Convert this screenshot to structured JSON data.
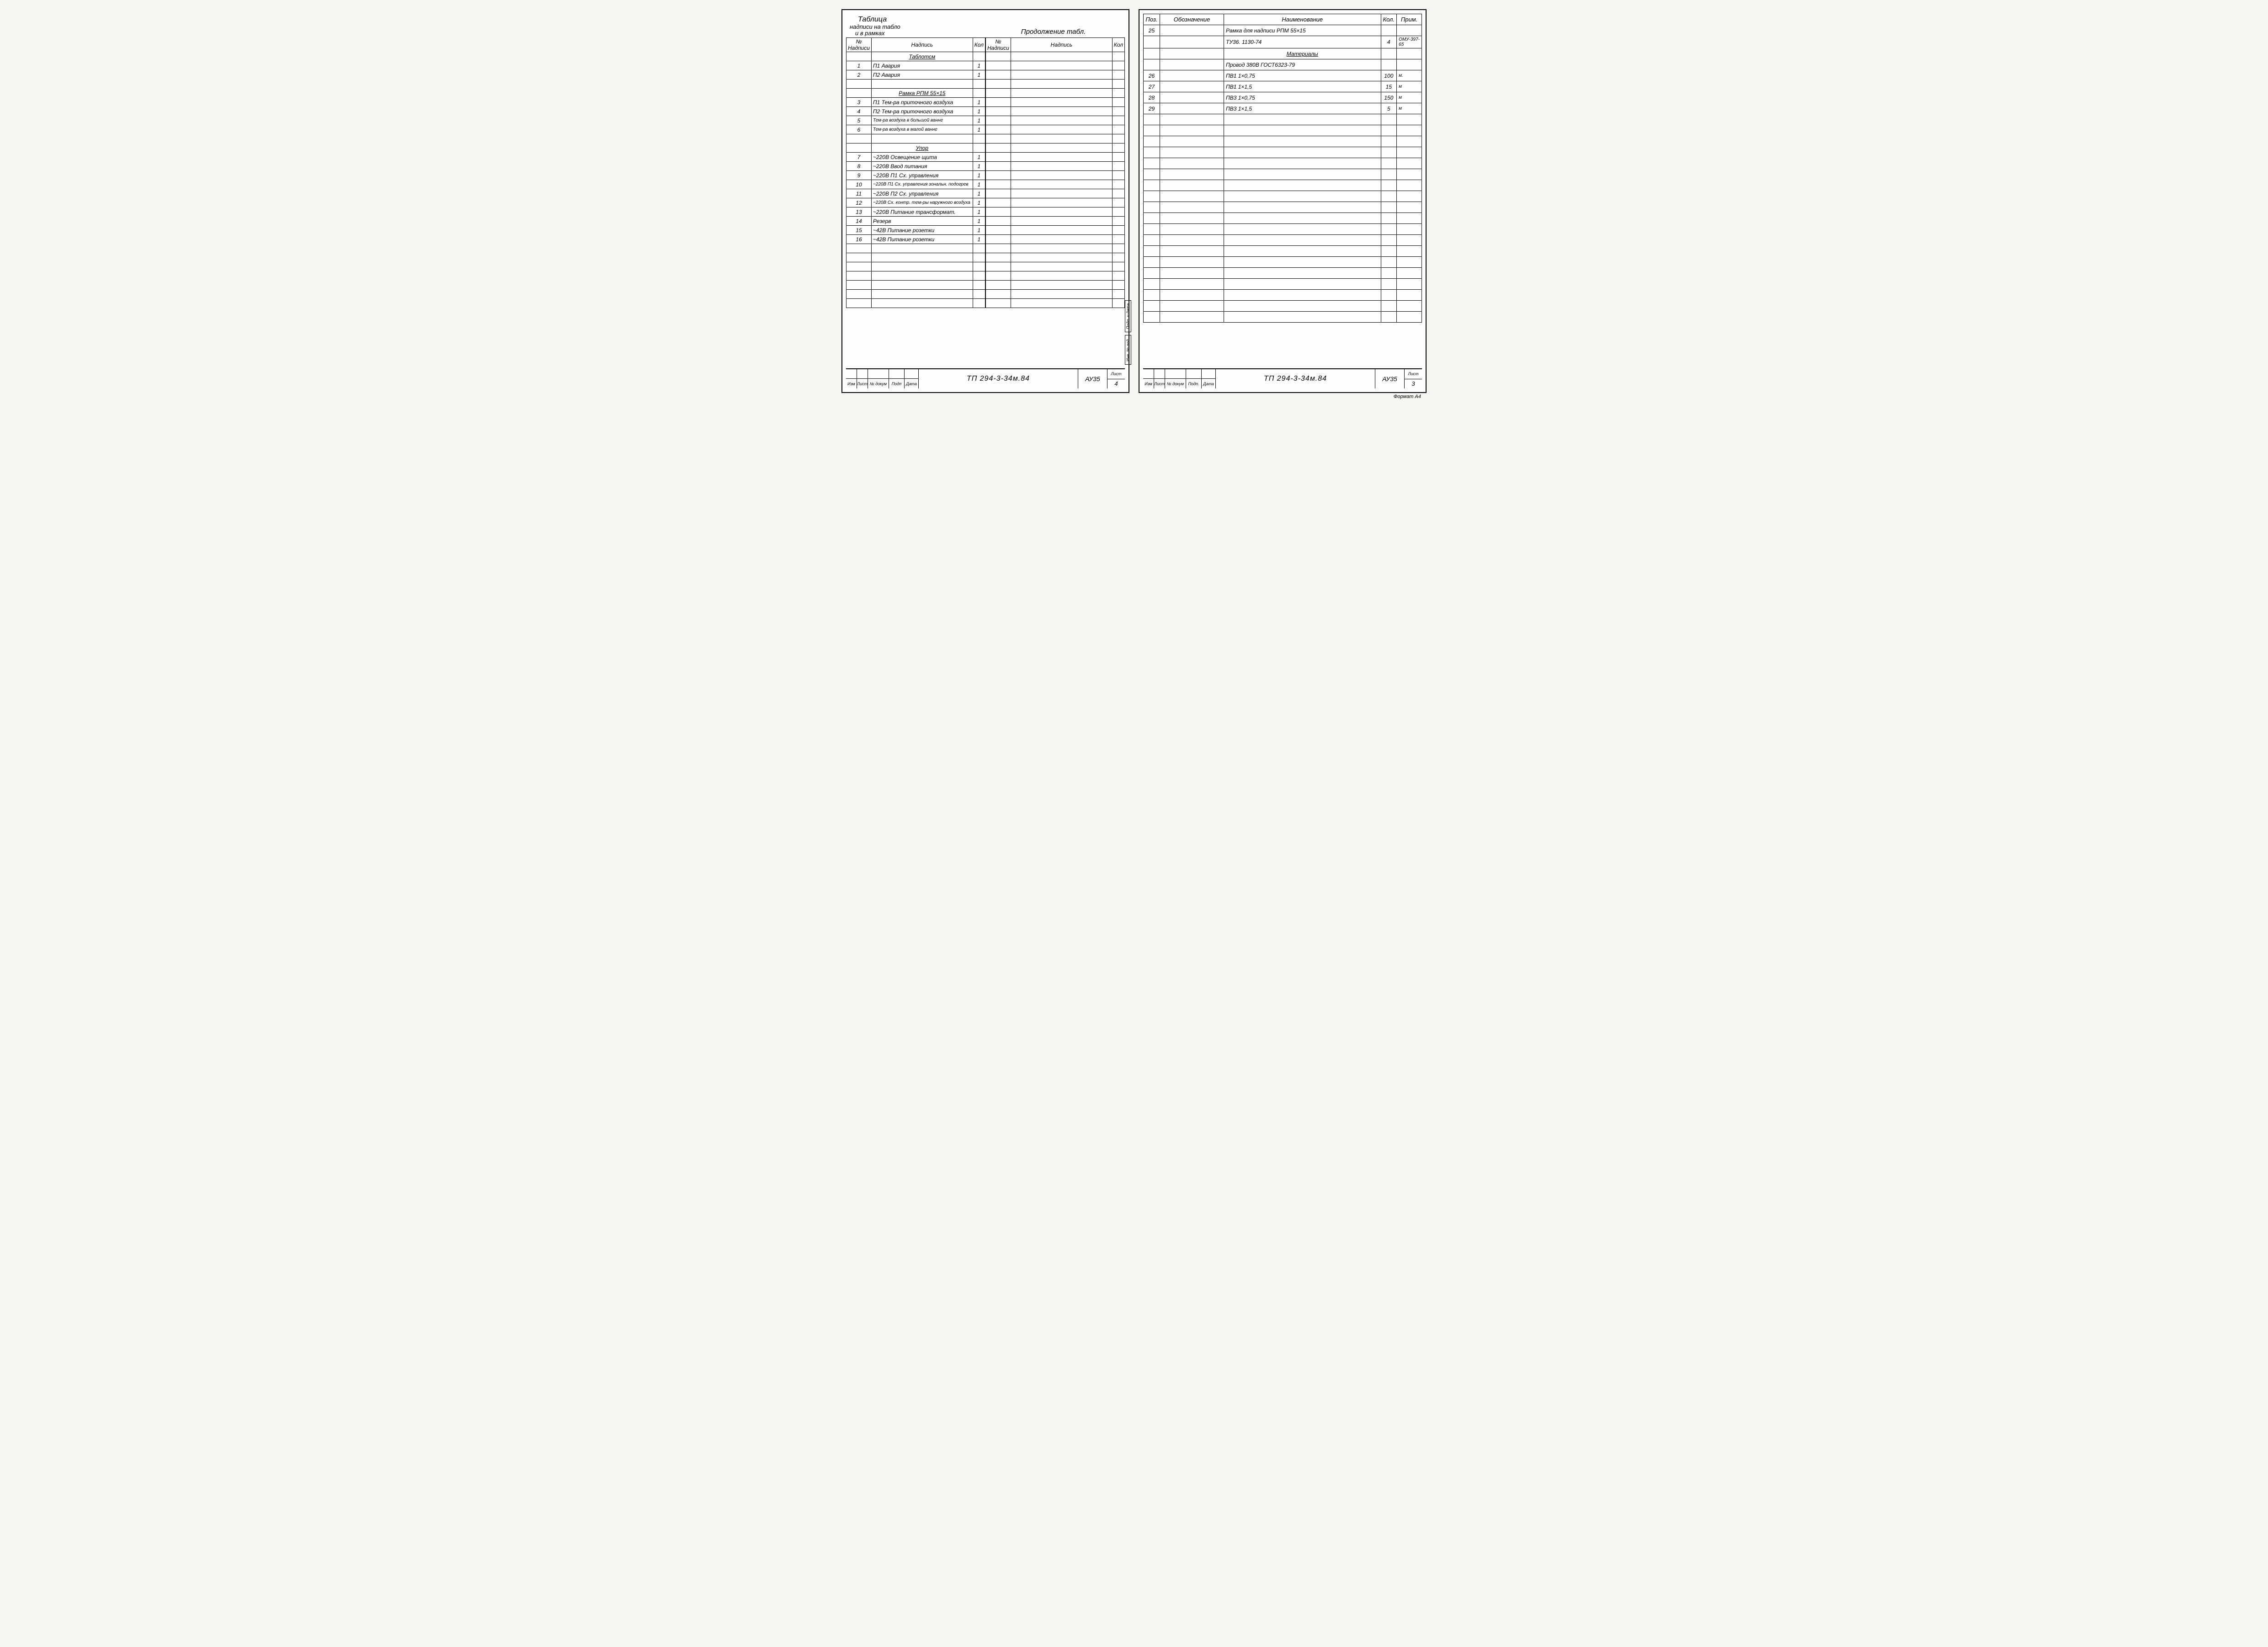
{
  "left": {
    "title_line1": "Таблица",
    "title_line2": "надписи на табло",
    "title_line3": "и в рамках",
    "continuation": "Продолжение табл.",
    "headers": {
      "num": "№ Надписи",
      "nad": "Надпись",
      "kol": "Кол"
    },
    "rows_left": [
      {
        "num": "",
        "nad": "Таблотсм",
        "kol": "",
        "section": true
      },
      {
        "num": "1",
        "nad": "П1   Авария",
        "kol": "1"
      },
      {
        "num": "2",
        "nad": "П2   Авария",
        "kol": "1"
      },
      {
        "num": "",
        "nad": "",
        "kol": ""
      },
      {
        "num": "",
        "nad": "Рамка РПМ 55×15",
        "kol": "",
        "section": true
      },
      {
        "num": "3",
        "nad": "П1 Тем-ра приточного воздуха",
        "kol": "1"
      },
      {
        "num": "4",
        "nad": "П2 Тем-ра приточного воздуха",
        "kol": "1"
      },
      {
        "num": "5",
        "nad": "Тем-ра воздуха в большой ванне",
        "kol": "1",
        "small": true
      },
      {
        "num": "6",
        "nad": "Тем-ра воздуха в малой ванне",
        "kol": "1",
        "small": true
      },
      {
        "num": "",
        "nad": "",
        "kol": ""
      },
      {
        "num": "",
        "nad": "Упор",
        "kol": "",
        "section": true,
        "underline": true
      },
      {
        "num": "7",
        "nad": "~220В Освещение щита",
        "kol": "1"
      },
      {
        "num": "8",
        "nad": "~220В Ввод питания",
        "kol": "1"
      },
      {
        "num": "9",
        "nad": "~220В П1 Сх. управления",
        "kol": "1"
      },
      {
        "num": "10",
        "nad": "~220В П1 Сх. управления зональн. подогрев",
        "kol": "1",
        "small": true
      },
      {
        "num": "11",
        "nad": "~220В П2 Сх. управления",
        "kol": "1"
      },
      {
        "num": "12",
        "nad": "~220В Сх. контр. тем-ры наружного воздуха",
        "kol": "1",
        "small": true
      },
      {
        "num": "13",
        "nad": "~220В Питание трансформат.",
        "kol": "1"
      },
      {
        "num": "14",
        "nad": "Резерв",
        "kol": "1"
      },
      {
        "num": "15",
        "nad": "~42В Питание розетки",
        "kol": "1"
      },
      {
        "num": "16",
        "nad": "~42В Питание розетки",
        "kol": "1"
      },
      {
        "num": "",
        "nad": "",
        "kol": ""
      },
      {
        "num": "",
        "nad": "",
        "kol": ""
      },
      {
        "num": "",
        "nad": "",
        "kol": ""
      },
      {
        "num": "",
        "nad": "",
        "kol": ""
      },
      {
        "num": "",
        "nad": "",
        "kol": ""
      },
      {
        "num": "",
        "nad": "",
        "kol": ""
      },
      {
        "num": "",
        "nad": "",
        "kol": ""
      }
    ],
    "blank_right_rows": 28,
    "stamp": {
      "rev_headers": [
        "Изм",
        "Лист",
        "№ докум",
        "Подп",
        "Дата"
      ],
      "doc_no": "ТП  294-3-34м.84",
      "code": "АУ35",
      "sheet_label": "Лист",
      "sheet_no": "4"
    }
  },
  "right": {
    "headers": {
      "poz": "Поз.",
      "oboz": "Обозначение",
      "naim": "Наименование",
      "kol": "Кол.",
      "prim": "Прим."
    },
    "rows": [
      {
        "poz": "25",
        "oboz": "",
        "naim": "Рамка для надписи РПМ 55×15",
        "kol": "",
        "prim": ""
      },
      {
        "poz": "",
        "oboz": "",
        "naim": "ТУ36. 1130-74",
        "kol": "4",
        "prim": "ОМУ-397-65"
      },
      {
        "poz": "",
        "oboz": "",
        "naim": "Материалы",
        "kol": "",
        "prim": "",
        "section": true,
        "underline": true
      },
      {
        "poz": "",
        "oboz": "",
        "naim": "Провод 380В  ГОСТ6323-79",
        "kol": "",
        "prim": ""
      },
      {
        "poz": "26",
        "oboz": "",
        "naim": "ПВ1 1×0,75",
        "kol": "100",
        "prim": "м."
      },
      {
        "poz": "27",
        "oboz": "",
        "naim": "ПВ1 1×1,5",
        "kol": "15",
        "prim": "м"
      },
      {
        "poz": "28",
        "oboz": "",
        "naim": "ПВ3 1×0,75",
        "kol": "150",
        "prim": "м"
      },
      {
        "poz": "29",
        "oboz": "",
        "naim": "ПВ3 1×1,5",
        "kol": "5",
        "prim": "м"
      }
    ],
    "blank_rows": 19,
    "stamp": {
      "rev_headers": [
        "Изм",
        "Лист",
        "№ докум",
        "Подп.",
        "Дата"
      ],
      "doc_no": "ТП  294-3-34м.84",
      "code": "АУ35",
      "sheet_label": "Лист",
      "sheet_no": "3"
    },
    "side_labels": [
      "Инв. № под.",
      "Подп. и дата"
    ],
    "format_note": "Формат А4"
  }
}
